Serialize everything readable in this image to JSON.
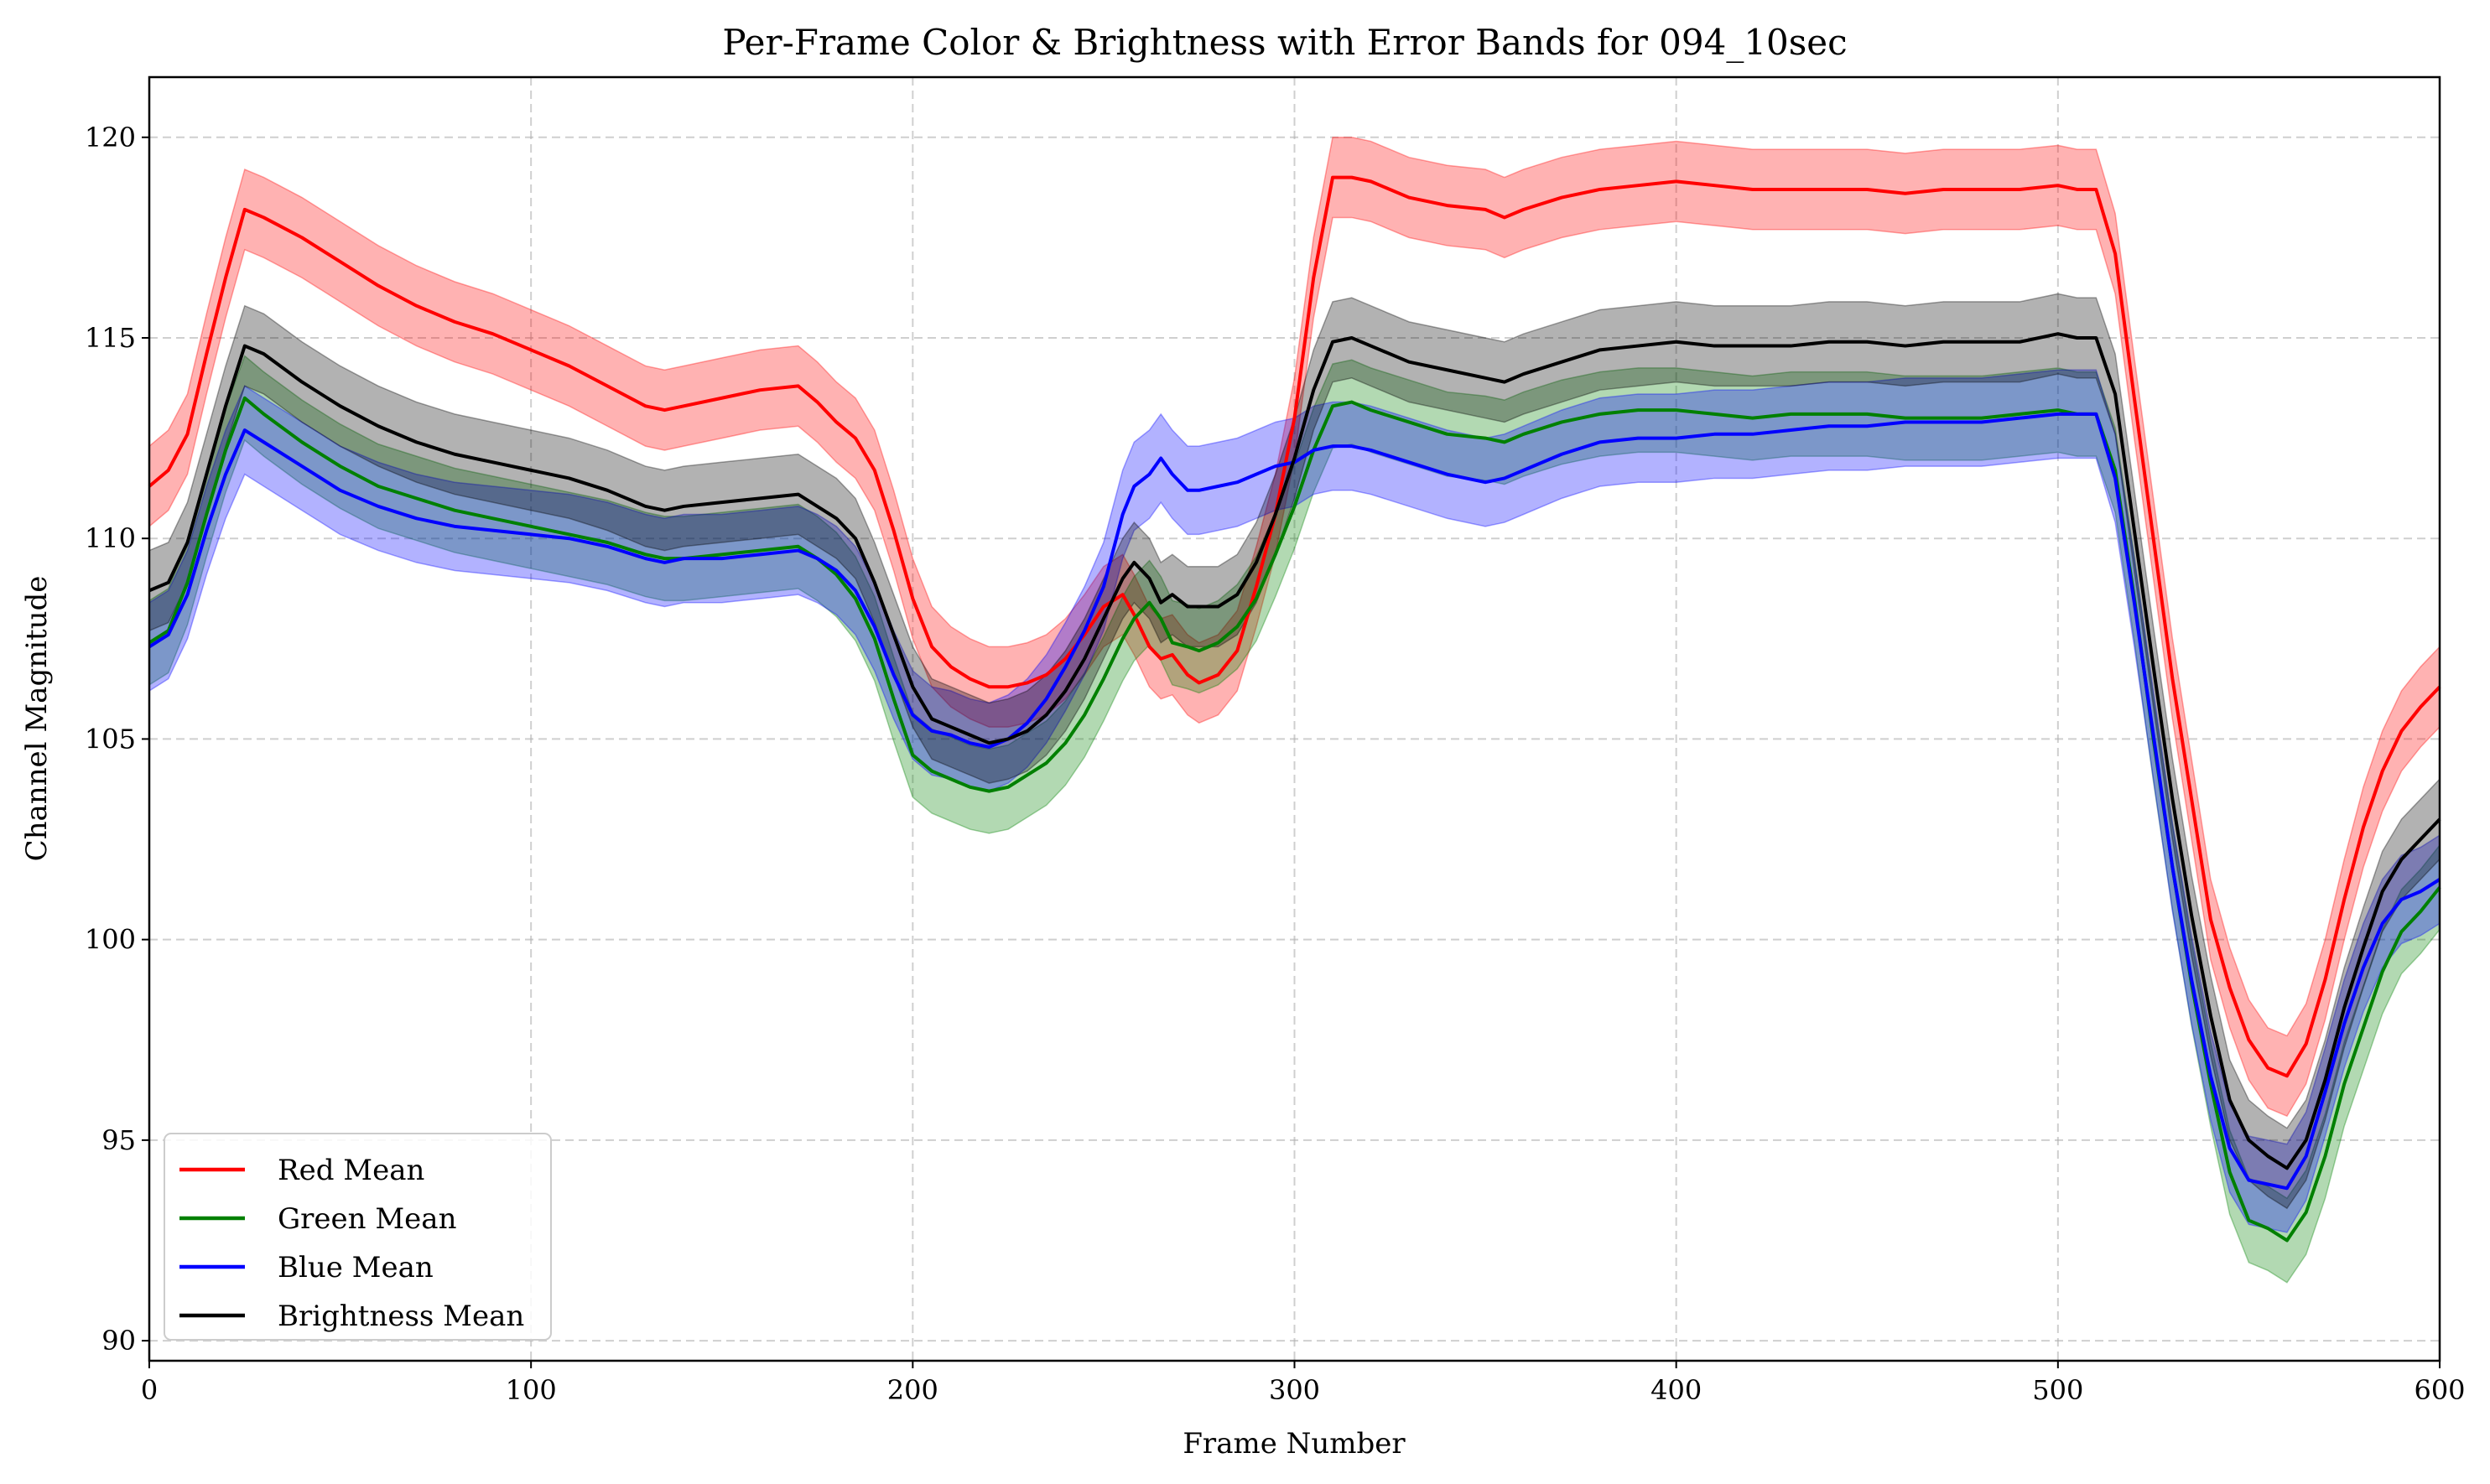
{
  "chart_data": {
    "type": "line",
    "title": "Per-Frame Color & Brightness with Error Bands for 094_10sec",
    "xlabel": "Frame Number",
    "ylabel": "Channel Magnitude",
    "xlim": [
      0,
      600
    ],
    "ylim": [
      89.5,
      121.5
    ],
    "xticks": [
      0,
      100,
      200,
      300,
      400,
      500,
      600
    ],
    "yticks": [
      90,
      95,
      100,
      105,
      110,
      115,
      120
    ],
    "grid": true,
    "legend_position": "lower-left",
    "series": [
      {
        "name": "Red Mean",
        "color": "#ff0000",
        "band_halfwidth": 1.0,
        "x": [
          0,
          5,
          10,
          15,
          20,
          25,
          30,
          40,
          50,
          60,
          70,
          80,
          90,
          100,
          110,
          120,
          130,
          135,
          140,
          150,
          160,
          170,
          175,
          180,
          185,
          190,
          195,
          200,
          205,
          210,
          215,
          220,
          225,
          230,
          235,
          240,
          245,
          250,
          255,
          258,
          262,
          265,
          268,
          272,
          275,
          280,
          285,
          290,
          295,
          300,
          305,
          310,
          315,
          320,
          330,
          340,
          350,
          355,
          360,
          370,
          380,
          390,
          400,
          410,
          420,
          430,
          440,
          450,
          460,
          470,
          480,
          490,
          500,
          505,
          510,
          515,
          520,
          525,
          530,
          535,
          540,
          545,
          550,
          555,
          560,
          565,
          570,
          575,
          580,
          585,
          590,
          595,
          600
        ],
        "values": [
          111.3,
          111.7,
          112.6,
          114.6,
          116.5,
          118.2,
          118.0,
          117.5,
          116.9,
          116.3,
          115.8,
          115.4,
          115.1,
          114.7,
          114.3,
          113.8,
          113.3,
          113.2,
          113.3,
          113.5,
          113.7,
          113.8,
          113.4,
          112.9,
          112.5,
          111.7,
          110.2,
          108.5,
          107.3,
          106.8,
          106.5,
          106.3,
          106.3,
          106.4,
          106.6,
          107.0,
          107.6,
          108.3,
          108.6,
          108.1,
          107.3,
          107.0,
          107.1,
          106.6,
          106.4,
          106.6,
          107.2,
          108.8,
          110.6,
          113.0,
          116.5,
          119.0,
          119.0,
          118.9,
          118.5,
          118.3,
          118.2,
          118.0,
          118.2,
          118.5,
          118.7,
          118.8,
          118.9,
          118.8,
          118.7,
          118.7,
          118.7,
          118.7,
          118.6,
          118.7,
          118.7,
          118.7,
          118.8,
          118.7,
          118.7,
          117.1,
          113.5,
          110.0,
          106.5,
          103.5,
          100.5,
          98.8,
          97.5,
          96.8,
          96.6,
          97.4,
          99.0,
          101.0,
          102.8,
          104.2,
          105.2,
          105.8,
          106.3
        ]
      },
      {
        "name": "Green Mean",
        "color": "#008000",
        "band_halfwidth": 1.05,
        "x": [
          0,
          5,
          10,
          15,
          20,
          25,
          30,
          40,
          50,
          60,
          70,
          80,
          90,
          100,
          110,
          120,
          130,
          135,
          140,
          150,
          160,
          170,
          175,
          180,
          185,
          190,
          195,
          200,
          205,
          210,
          215,
          220,
          225,
          230,
          235,
          240,
          245,
          250,
          255,
          258,
          262,
          265,
          268,
          272,
          275,
          280,
          285,
          290,
          295,
          300,
          305,
          310,
          315,
          320,
          330,
          340,
          350,
          355,
          360,
          370,
          380,
          390,
          400,
          410,
          420,
          430,
          440,
          450,
          460,
          470,
          480,
          490,
          500,
          505,
          510,
          515,
          520,
          525,
          530,
          535,
          540,
          545,
          550,
          555,
          560,
          565,
          570,
          575,
          580,
          585,
          590,
          595,
          600
        ],
        "values": [
          107.4,
          107.7,
          108.9,
          110.6,
          112.2,
          113.5,
          113.1,
          112.4,
          111.8,
          111.3,
          111.0,
          110.7,
          110.5,
          110.3,
          110.1,
          109.9,
          109.6,
          109.5,
          109.5,
          109.6,
          109.7,
          109.8,
          109.5,
          109.1,
          108.5,
          107.5,
          106.0,
          104.6,
          104.2,
          104.0,
          103.8,
          103.7,
          103.8,
          104.1,
          104.4,
          104.9,
          105.6,
          106.5,
          107.5,
          108.0,
          108.4,
          108.0,
          107.4,
          107.3,
          107.2,
          107.4,
          107.8,
          108.5,
          109.6,
          110.8,
          112.2,
          113.3,
          113.4,
          113.2,
          112.9,
          112.6,
          112.5,
          112.4,
          112.6,
          112.9,
          113.1,
          113.2,
          113.2,
          113.1,
          113.0,
          113.1,
          113.1,
          113.1,
          113.0,
          113.0,
          113.0,
          113.1,
          113.2,
          113.1,
          113.1,
          111.7,
          108.5,
          105.0,
          101.8,
          98.9,
          96.4,
          94.2,
          93.0,
          92.8,
          92.5,
          93.2,
          94.6,
          96.4,
          97.8,
          99.2,
          100.2,
          100.7,
          101.3
        ]
      },
      {
        "name": "Blue Mean",
        "color": "#0000ff",
        "band_halfwidth": 1.1,
        "x": [
          0,
          5,
          10,
          15,
          20,
          25,
          30,
          40,
          50,
          60,
          70,
          80,
          90,
          100,
          110,
          120,
          130,
          135,
          140,
          150,
          160,
          170,
          175,
          180,
          185,
          190,
          195,
          200,
          205,
          210,
          215,
          220,
          225,
          230,
          235,
          240,
          245,
          250,
          255,
          258,
          262,
          265,
          268,
          272,
          275,
          280,
          285,
          290,
          295,
          300,
          305,
          310,
          315,
          320,
          330,
          340,
          350,
          355,
          360,
          370,
          380,
          390,
          400,
          410,
          420,
          430,
          440,
          450,
          460,
          470,
          480,
          490,
          500,
          505,
          510,
          515,
          520,
          525,
          530,
          535,
          540,
          545,
          550,
          555,
          560,
          565,
          570,
          575,
          580,
          585,
          590,
          595,
          600
        ],
        "values": [
          107.3,
          107.6,
          108.6,
          110.2,
          111.6,
          112.7,
          112.4,
          111.8,
          111.2,
          110.8,
          110.5,
          110.3,
          110.2,
          110.1,
          110.0,
          109.8,
          109.5,
          109.4,
          109.5,
          109.5,
          109.6,
          109.7,
          109.5,
          109.2,
          108.7,
          107.8,
          106.6,
          105.6,
          105.2,
          105.1,
          104.9,
          104.8,
          105.0,
          105.4,
          106.0,
          106.8,
          107.7,
          108.8,
          110.6,
          111.3,
          111.6,
          112.0,
          111.6,
          111.2,
          111.2,
          111.3,
          111.4,
          111.6,
          111.8,
          111.9,
          112.2,
          112.3,
          112.3,
          112.2,
          111.9,
          111.6,
          111.4,
          111.5,
          111.7,
          112.1,
          112.4,
          112.5,
          112.5,
          112.6,
          112.6,
          112.7,
          112.8,
          112.8,
          112.9,
          112.9,
          112.9,
          113.0,
          113.1,
          113.1,
          113.1,
          111.5,
          108.4,
          105.1,
          101.8,
          99.0,
          96.6,
          94.8,
          94.0,
          93.9,
          93.8,
          94.6,
          96.2,
          97.9,
          99.3,
          100.4,
          101.0,
          101.2,
          101.5
        ]
      },
      {
        "name": "Brightness Mean",
        "color": "#000000",
        "band_halfwidth": 1.0,
        "x": [
          0,
          5,
          10,
          15,
          20,
          25,
          30,
          40,
          50,
          60,
          70,
          80,
          90,
          100,
          110,
          120,
          130,
          135,
          140,
          150,
          160,
          170,
          175,
          180,
          185,
          190,
          195,
          200,
          205,
          210,
          215,
          220,
          225,
          230,
          235,
          240,
          245,
          250,
          255,
          258,
          262,
          265,
          268,
          272,
          275,
          280,
          285,
          290,
          295,
          300,
          305,
          310,
          315,
          320,
          330,
          340,
          350,
          355,
          360,
          370,
          380,
          390,
          400,
          410,
          420,
          430,
          440,
          450,
          460,
          470,
          480,
          490,
          500,
          505,
          510,
          515,
          520,
          525,
          530,
          535,
          540,
          545,
          550,
          555,
          560,
          565,
          570,
          575,
          580,
          585,
          590,
          595,
          600
        ],
        "values": [
          108.7,
          108.9,
          109.9,
          111.6,
          113.3,
          114.8,
          114.6,
          113.9,
          113.3,
          112.8,
          112.4,
          112.1,
          111.9,
          111.7,
          111.5,
          111.2,
          110.8,
          110.7,
          110.8,
          110.9,
          111.0,
          111.1,
          110.8,
          110.5,
          110.0,
          108.9,
          107.6,
          106.3,
          105.5,
          105.3,
          105.1,
          104.9,
          105.0,
          105.2,
          105.6,
          106.2,
          107.0,
          108.0,
          109.0,
          109.4,
          109.0,
          108.4,
          108.6,
          108.3,
          108.3,
          108.3,
          108.6,
          109.4,
          110.6,
          112.0,
          113.7,
          114.9,
          115.0,
          114.8,
          114.4,
          114.2,
          114.0,
          113.9,
          114.1,
          114.4,
          114.7,
          114.8,
          114.9,
          114.8,
          114.8,
          114.8,
          114.9,
          114.9,
          114.8,
          114.9,
          114.9,
          114.9,
          115.1,
          115.0,
          115.0,
          113.6,
          110.2,
          106.8,
          103.5,
          100.6,
          98.1,
          96.0,
          95.0,
          94.6,
          94.3,
          95.0,
          96.5,
          98.3,
          99.8,
          101.2,
          102.0,
          102.5,
          103.0
        ]
      }
    ]
  }
}
